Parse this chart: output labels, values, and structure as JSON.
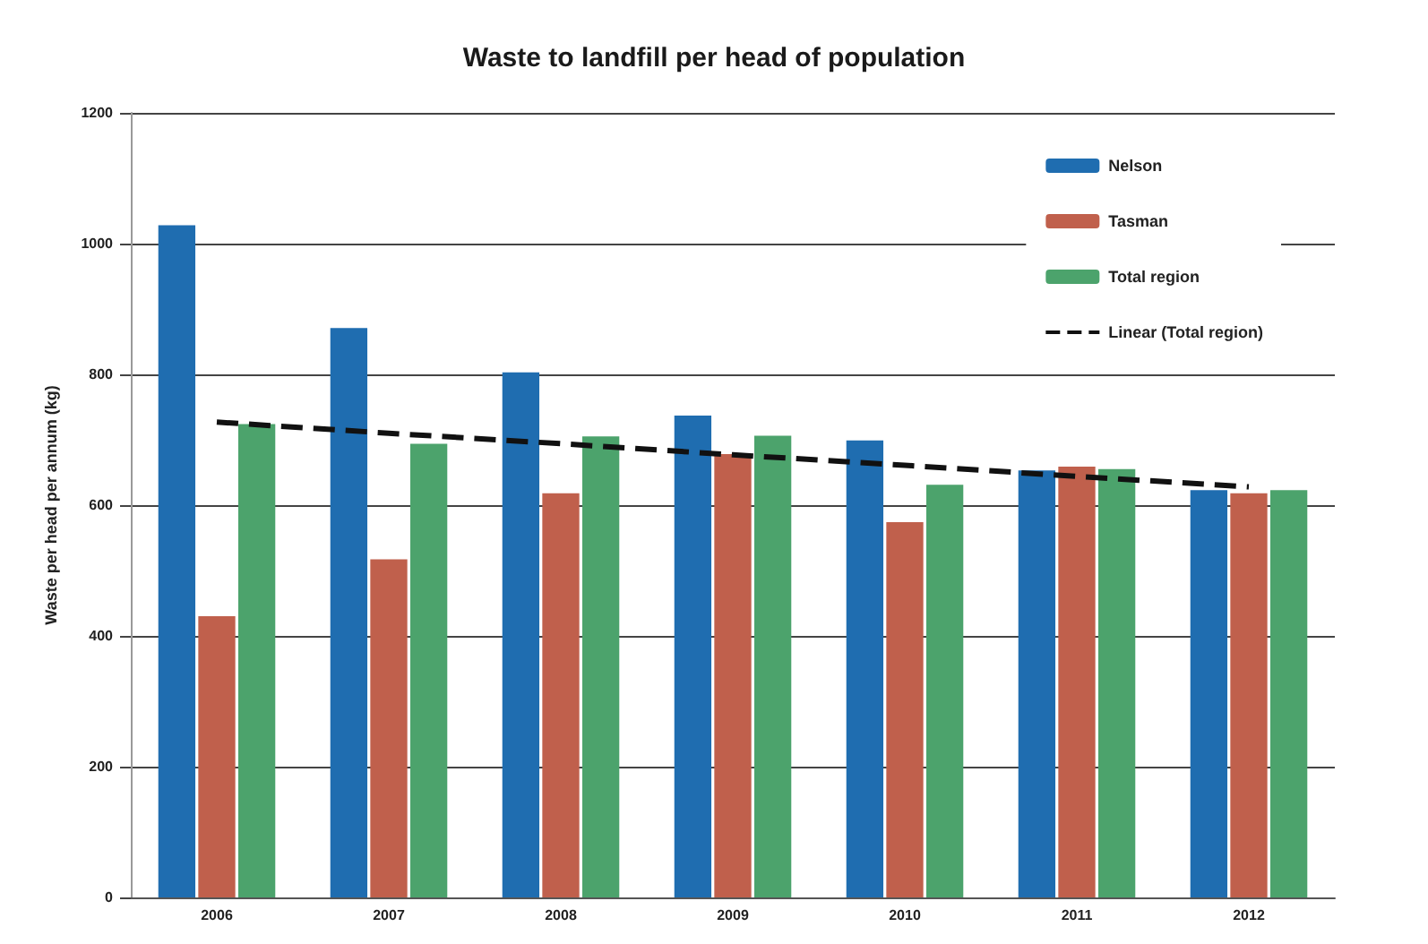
{
  "chart_data": {
    "type": "bar",
    "title": "Waste to landfill per head of population",
    "ylabel": "Waste per head per annum (kg)",
    "categories": [
      "2006",
      "2007",
      "2008",
      "2009",
      "2010",
      "2011",
      "2012"
    ],
    "series": [
      {
        "name": "Nelson",
        "color": "#1f6db0",
        "values": [
          1028,
          871,
          803,
          737,
          699,
          653,
          623
        ]
      },
      {
        "name": "Tasman",
        "color": "#c0604c",
        "values": [
          430,
          517,
          618,
          678,
          574,
          659,
          618
        ]
      },
      {
        "name": "Total region",
        "color": "#4ca36c",
        "values": [
          724,
          694,
          705,
          706,
          631,
          655,
          623
        ]
      },
      {
        "name": "Linear (Total region)",
        "type": "line",
        "color": "#111111",
        "line_style": "dashed",
        "marker": "none",
        "values": [
          727,
          710,
          694,
          677,
          661,
          644,
          628
        ]
      }
    ],
    "ylim": [
      0,
      1200
    ],
    "yticks": [
      0,
      200,
      400,
      600,
      800,
      1000,
      1200
    ],
    "grid": "y",
    "legend": "top right"
  }
}
